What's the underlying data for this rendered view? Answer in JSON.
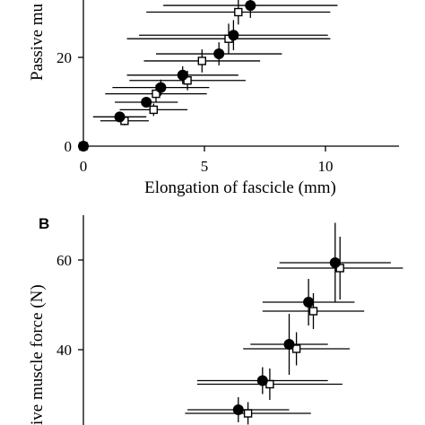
{
  "chart_data": [
    {
      "type": "scatter",
      "panel_label": "",
      "xlabel": "Elongation of fascicle (mm)",
      "ylabel": "Passive mu",
      "xlim": [
        -0.3,
        13.2
      ],
      "ylim": [
        0,
        32
      ],
      "xticks": [
        "0",
        "5",
        "10"
      ],
      "yticks": [
        "0",
        "20"
      ],
      "grid": false,
      "series": [
        {
          "marker": "filled-circle",
          "points": [
            {
              "x": 0.0,
              "y": 0.0,
              "xerr": 0.0,
              "yerr": 0.0
            },
            {
              "x": 1.5,
              "y": 6.6,
              "xerr": 1.1,
              "yerr": 1.0
            },
            {
              "x": 2.6,
              "y": 9.9,
              "xerr": 1.3,
              "yerr": 1.2
            },
            {
              "x": 3.2,
              "y": 13.2,
              "xerr": 2.0,
              "yerr": 1.8
            },
            {
              "x": 4.1,
              "y": 16.0,
              "xerr": 2.3,
              "yerr": 2.0
            },
            {
              "x": 5.6,
              "y": 20.8,
              "xerr": 2.6,
              "yerr": 2.6
            },
            {
              "x": 6.2,
              "y": 25.0,
              "xerr": 3.9,
              "yerr": 3.4
            },
            {
              "x": 6.9,
              "y": 31.7,
              "xerr": 3.6,
              "yerr": 2.8
            }
          ]
        },
        {
          "marker": "open-square",
          "points": [
            {
              "x": 0.0,
              "y": 0.0,
              "xerr": 0.0,
              "yerr": 0.0
            },
            {
              "x": 1.7,
              "y": 5.7,
              "xerr": 1.0,
              "yerr": 1.0
            },
            {
              "x": 2.9,
              "y": 8.2,
              "xerr": 1.4,
              "yerr": 1.4
            },
            {
              "x": 3.0,
              "y": 11.8,
              "xerr": 2.1,
              "yerr": 2.0
            },
            {
              "x": 4.3,
              "y": 14.8,
              "xerr": 2.4,
              "yerr": 2.2
            },
            {
              "x": 4.9,
              "y": 19.2,
              "xerr": 2.4,
              "yerr": 2.6
            },
            {
              "x": 6.0,
              "y": 24.2,
              "xerr": 4.2,
              "yerr": 3.4
            },
            {
              "x": 6.4,
              "y": 30.2,
              "xerr": 3.8,
              "yerr": 2.8
            }
          ]
        }
      ]
    },
    {
      "type": "scatter",
      "panel_label": "B",
      "xlabel": "",
      "ylabel": "ive muscle force (N)",
      "xlim": [
        -0.3,
        13.2
      ],
      "ylim": [
        22,
        68
      ],
      "xticks": [],
      "yticks": [
        "40",
        "60"
      ],
      "grid": false,
      "series": [
        {
          "marker": "filled-circle",
          "points": [
            {
              "x": 6.4,
              "y": 26.6,
              "xerr": 2.1,
              "yerr": 2.8
            },
            {
              "x": 7.4,
              "y": 33.1,
              "xerr": 2.7,
              "yerr": 3.0
            },
            {
              "x": 8.5,
              "y": 41.2,
              "xerr": 1.6,
              "yerr": 6.8
            },
            {
              "x": 9.3,
              "y": 50.6,
              "xerr": 1.9,
              "yerr": 5.2
            },
            {
              "x": 10.4,
              "y": 59.4,
              "xerr": 2.3,
              "yerr": 8.9
            }
          ]
        },
        {
          "marker": "open-square",
          "points": [
            {
              "x": 6.8,
              "y": 25.8,
              "xerr": 2.6,
              "yerr": 2.5
            },
            {
              "x": 7.7,
              "y": 32.3,
              "xerr": 3.0,
              "yerr": 3.5
            },
            {
              "x": 8.8,
              "y": 40.2,
              "xerr": 2.2,
              "yerr": 3.7
            },
            {
              "x": 9.5,
              "y": 48.6,
              "xerr": 2.1,
              "yerr": 4.0
            },
            {
              "x": 10.6,
              "y": 58.2,
              "xerr": 2.6,
              "yerr": 7.0
            }
          ]
        }
      ]
    }
  ]
}
